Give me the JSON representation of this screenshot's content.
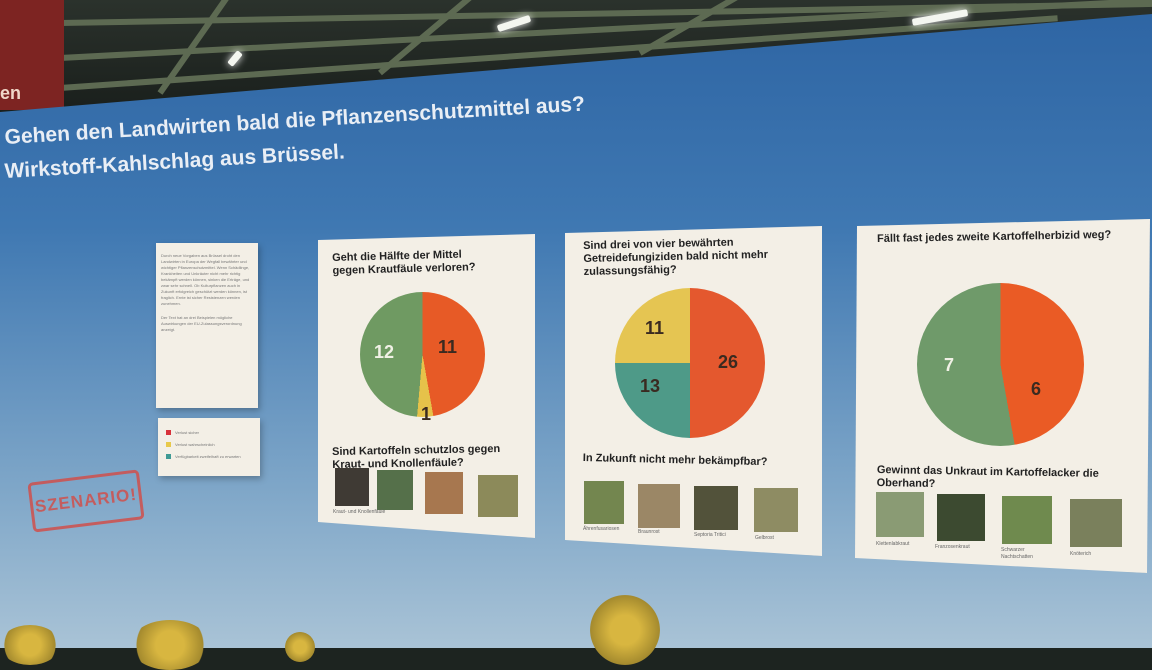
{
  "background": {
    "banner_text": "en"
  },
  "headline": {
    "line1": "Gehen den Landwirten bald die Pflanzenschutzmittel aus?",
    "line2": "Wirkstoff-Kahlschlag aus Brüssel."
  },
  "intro_panel": {
    "paragraph1": "Durch neue Vorgaben aus Brüssel droht den Landwirten in Europa der Wegfall bewährter und wichtiger Pflanzenschutzmittel. Wenn Schädlinge, Krankheiten und Unkräuter nicht mehr richtig bekämpft werden können, sinken die Erträge, und zwar sehr schnell. Ob Kulturpflanzen auch in Zukunft erfolgreich geschützt werden können, ist fraglich. Ernte ist sicher Resistenzen werden zunehmen.",
    "paragraph2": "Der Text hat an drei Beispielen mögliche Auswirkungen der EU-Zulassungsverordnung anzeigt."
  },
  "legend": {
    "items": [
      {
        "label": "Verlust sicher",
        "color": "#d8323a"
      },
      {
        "label": "Verlust wahrscheinlich",
        "color": "#e8c94a"
      },
      {
        "label": "Verfügbarkeit zweifelhaft zu erwarten",
        "color": "#3f9a94"
      }
    ]
  },
  "stamp": {
    "text": "SZENARIO!"
  },
  "panels": [
    {
      "question": "Geht die Hälfte der Mittel gegen Krautfäule verloren?",
      "pie_values": [
        {
          "value": "12",
          "color": "#6f9a62"
        },
        {
          "value": "11",
          "color": "#e75a26"
        },
        {
          "value": "1",
          "color": "#e6c24a"
        }
      ],
      "subquestion": "Sind Kartoffeln schutzlos gegen Kraut- und Knollenfäule?",
      "caption": "Kraut- und Knollenfäule"
    },
    {
      "question": "Sind drei von vier bewährten Getreidefungiziden bald nicht mehr zulassungsfähig?",
      "pie_values": [
        {
          "value": "11",
          "color": "#e5c552"
        },
        {
          "value": "13",
          "color": "#4e9a88"
        },
        {
          "value": "26",
          "color": "#e4582e"
        }
      ],
      "subquestion": "In Zukunft nicht mehr bekämpfbar?",
      "captions": [
        "Ährenfusariosen",
        "Braunrost",
        "Septoria Tritici",
        "Gelbrost"
      ]
    },
    {
      "question": "Fällt fast jedes zweite Kartoffelherbizid weg?",
      "pie_values": [
        {
          "value": "7",
          "color": "#6f9a6a"
        },
        {
          "value": "6",
          "color": "#ea5b25"
        }
      ],
      "subquestion": "Gewinnt das Unkraut im Kartoffelacker die Oberhand?",
      "captions": [
        "Klettenlabkraut",
        "Franzosenkraut",
        "Schwarzer Nachtschatten",
        "Knöterich"
      ]
    }
  ]
}
